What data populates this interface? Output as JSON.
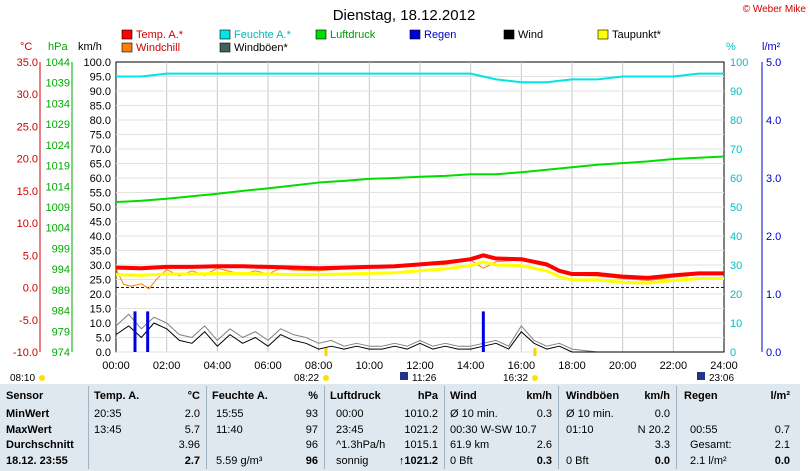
{
  "title": "Dienstag, 18.12.2012",
  "copyright": "© Weber Mike",
  "colors": {
    "temp": "#ff0000",
    "humidity": "#00e5e5",
    "pressure": "#00dd00",
    "rain": "#0000dd",
    "wind": "#000000",
    "dewpoint": "#ffff00",
    "windchill": "#ff8000",
    "gust": "#808080",
    "table_bg": "#dfe8ef"
  },
  "legend": [
    {
      "label": "Temp. A.*",
      "color": "#ff0000"
    },
    {
      "label": "Feuchte A.*",
      "color": "#00e5e5"
    },
    {
      "label": "Luftdruck",
      "color": "#00dd00"
    },
    {
      "label": "Regen",
      "color": "#0000dd"
    },
    {
      "label": "Wind",
      "color": "#000000"
    },
    {
      "label": "Taupunkt*",
      "color": "#ffff00"
    },
    {
      "label": "Windchill",
      "color": "#ff8000"
    },
    {
      "label": "Windböen*",
      "color": "#406060"
    }
  ],
  "axis_units": {
    "temp": "°C",
    "pressure": "hPa",
    "wind": "km/h",
    "humidity": "%",
    "rain": "l/m²"
  },
  "chart_data": {
    "type": "line",
    "title": "Dienstag, 18.12.2012",
    "x_ticks": [
      "00:00",
      "02:00",
      "04:00",
      "06:00",
      "08:00",
      "10:00",
      "12:00",
      "14:00",
      "16:00",
      "18:00",
      "20:00",
      "22:00",
      "24:00"
    ],
    "temp_ticks": [
      "35.0",
      "30.0",
      "25.0",
      "20.0",
      "15.0",
      "10.0",
      "5.0",
      "0.0",
      "-5.0",
      "-10.0"
    ],
    "pressure_ticks": [
      "1044",
      "1039",
      "1034",
      "1029",
      "1024",
      "1019",
      "1014",
      "1009",
      "1004",
      "999",
      "994",
      "989",
      "984",
      "979",
      "974"
    ],
    "wind_ticks": [
      "100.0",
      "95.0",
      "90.0",
      "85.0",
      "80.0",
      "75.0",
      "70.0",
      "65.0",
      "60.0",
      "55.0",
      "50.0",
      "45.0",
      "40.0",
      "35.0",
      "30.0",
      "25.0",
      "20.0",
      "15.0",
      "10.0",
      "5.0",
      "0.0"
    ],
    "humidity_ticks": [
      "100",
      "90",
      "80",
      "70",
      "60",
      "50",
      "40",
      "30",
      "20",
      "10",
      "0"
    ],
    "rain_ticks": [
      "5.0",
      "4.0",
      "3.0",
      "2.0",
      "1.0",
      "0.0"
    ],
    "ylim_temp": [
      -10,
      35
    ],
    "ylim_pressure": [
      974,
      1044
    ],
    "ylim_wind": [
      0,
      100
    ],
    "ylim_humidity": [
      0,
      100
    ],
    "ylim_rain": [
      0,
      5
    ],
    "series": [
      {
        "name": "Temp. A.*",
        "axis": "temp",
        "x": [
          0,
          1,
          2,
          3,
          4,
          5,
          6,
          7,
          8,
          9,
          10,
          11,
          12,
          13,
          14,
          14.5,
          15,
          16,
          17,
          17.5,
          18,
          19,
          20,
          21,
          22,
          23,
          24
        ],
        "values": [
          3.1,
          3.0,
          3.2,
          3.2,
          3.3,
          3.3,
          3.2,
          3.1,
          3.0,
          3.1,
          3.2,
          3.3,
          3.6,
          3.9,
          4.4,
          5.0,
          4.5,
          4.4,
          3.6,
          2.6,
          2.1,
          2.1,
          1.7,
          1.5,
          1.9,
          2.2,
          2.2
        ]
      },
      {
        "name": "Taupunkt*",
        "axis": "temp",
        "x": [
          0,
          1,
          2,
          3,
          4,
          5,
          6,
          7,
          8,
          9,
          10,
          11,
          12,
          13,
          14,
          14.5,
          15,
          16,
          17,
          17.5,
          18,
          19,
          20,
          21,
          22,
          23,
          24
        ],
        "values": [
          2.0,
          1.9,
          2.1,
          2.1,
          2.2,
          2.2,
          2.1,
          2.0,
          2.0,
          2.1,
          2.2,
          2.3,
          2.6,
          2.9,
          3.4,
          4.0,
          3.5,
          3.4,
          2.6,
          1.7,
          1.2,
          1.2,
          0.8,
          0.7,
          1.1,
          1.4,
          1.4
        ]
      },
      {
        "name": "Windchill",
        "axis": "temp",
        "x": [
          0,
          0.3,
          0.6,
          1,
          1.3,
          1.6,
          2,
          2.5,
          3,
          3.5,
          4,
          5,
          5.5,
          6,
          6.5,
          7,
          8,
          9,
          10,
          11,
          12,
          13,
          14,
          14.5,
          15,
          16,
          17,
          18,
          19,
          20,
          21,
          22,
          23,
          24
        ],
        "values": [
          2.9,
          0.5,
          0.2,
          0.6,
          -0.2,
          1.3,
          2.8,
          1.8,
          2.6,
          1.9,
          3.0,
          2.0,
          2.6,
          2.1,
          3.0,
          2.7,
          2.6,
          2.9,
          3.1,
          3.2,
          3.4,
          3.6,
          4.2,
          3.0,
          4.0,
          4.3,
          3.3,
          1.9,
          1.8,
          1.4,
          1.1,
          1.6,
          2.0,
          2.1
        ]
      },
      {
        "name": "Feuchte A.*",
        "axis": "humidity",
        "x": [
          0,
          1,
          2,
          3,
          4,
          5,
          6,
          7,
          8,
          9,
          10,
          11,
          12,
          13,
          14,
          15,
          16,
          17,
          18,
          19,
          20,
          21,
          22,
          23,
          24
        ],
        "values": [
          95,
          95,
          96,
          96,
          96,
          96,
          96,
          96,
          96,
          96,
          96,
          96,
          96,
          96,
          96,
          94,
          93,
          93,
          94,
          94,
          95,
          95,
          95,
          96,
          96
        ]
      },
      {
        "name": "Luftdruck",
        "axis": "pressure",
        "x": [
          0,
          1,
          2,
          3,
          4,
          5,
          6,
          7,
          8,
          9,
          10,
          11,
          12,
          13,
          14,
          15,
          16,
          17,
          18,
          19,
          20,
          21,
          22,
          23,
          24
        ],
        "values": [
          1010.2,
          1010.5,
          1011.0,
          1011.6,
          1012.2,
          1012.9,
          1013.5,
          1014.2,
          1014.9,
          1015.3,
          1015.8,
          1016.0,
          1016.3,
          1016.5,
          1016.9,
          1016.9,
          1017.4,
          1018.0,
          1018.6,
          1019.2,
          1019.6,
          1020.0,
          1020.6,
          1020.9,
          1021.2
        ]
      },
      {
        "name": "Wind",
        "axis": "wind",
        "x": [
          0,
          0.5,
          1,
          1.5,
          2,
          2.5,
          3,
          3.5,
          4,
          4.5,
          5,
          5.5,
          6,
          6.5,
          7,
          7.5,
          8,
          8.5,
          9,
          9.5,
          10,
          10.5,
          11,
          11.5,
          12,
          12.5,
          13,
          13.5,
          14,
          14.5,
          15,
          15.5,
          16,
          16.5,
          17,
          17.5,
          18,
          19,
          20,
          21,
          22,
          23,
          24
        ],
        "values": [
          6,
          9,
          5,
          10,
          8,
          4,
          3,
          7,
          2,
          6,
          3,
          5,
          2,
          6,
          4,
          3,
          1,
          2,
          1,
          2,
          1,
          1,
          2,
          1,
          3,
          1,
          2,
          1,
          1,
          2,
          3,
          1,
          7,
          3,
          1,
          2,
          0,
          0,
          0,
          0,
          0,
          0,
          0
        ]
      },
      {
        "name": "Windböen*",
        "axis": "wind",
        "x": [
          0,
          0.5,
          1,
          1.5,
          2,
          2.5,
          3,
          3.5,
          4,
          4.5,
          5,
          5.5,
          6,
          6.5,
          7,
          7.5,
          8,
          8.5,
          9,
          9.5,
          10,
          10.5,
          11,
          11.5,
          12,
          12.5,
          13,
          13.5,
          14,
          14.5,
          15,
          15.5,
          16,
          16.5,
          17,
          17.5,
          18,
          19,
          20,
          21,
          22,
          23,
          24
        ],
        "values": [
          9,
          13,
          8,
          12,
          10,
          6,
          5,
          9,
          4,
          8,
          5,
          7,
          4,
          8,
          6,
          5,
          3,
          4,
          2,
          3,
          2,
          2,
          3,
          2,
          4,
          2,
          3,
          2,
          2,
          3,
          4,
          2,
          9,
          4,
          2,
          3,
          1,
          0,
          0,
          0,
          0,
          0,
          0
        ]
      }
    ],
    "rain_bars": {
      "x": [
        0.75,
        1.25,
        14.5
      ],
      "values": [
        0.7,
        0.7,
        0.7
      ]
    }
  },
  "sun_markers": {
    "sunrise": "08:22",
    "sunset": "16:32",
    "moonrise": "11:26",
    "moonset": "23:06",
    "day_start": "08:10"
  },
  "table": {
    "headers": [
      "Sensor",
      "Temp. A.",
      "°C",
      "Feuchte A.",
      "%",
      "Luftdruck",
      "hPa",
      "Wind",
      "km/h",
      "Windböen",
      "km/h",
      "Regen",
      "l/m²"
    ],
    "rows": [
      {
        "label": "MinWert",
        "temp_time": "20:35",
        "temp_val": "2.0",
        "hum_time": "15:55",
        "hum_val": "93",
        "pres_time": "00:00",
        "pres_val": "1010.2",
        "wind_desc": "Ø 10 min.",
        "wind_val": "0.3",
        "gust_desc": "Ø 10 min.",
        "gust_val": "0.0",
        "rain_desc": "",
        "rain_val": ""
      },
      {
        "label": "MaxWert",
        "temp_time": "13:45",
        "temp_val": "5.7",
        "hum_time": "11:40",
        "hum_val": "97",
        "pres_time": "23:45",
        "pres_val": "1021.2",
        "wind_desc": "00:30   W-SW 10.7",
        "wind_val": "",
        "gust_desc": "01:10",
        "gust_val": "N 20.2",
        "rain_desc": "00:55",
        "rain_val": "0.7"
      },
      {
        "label": "Durchschnitt",
        "temp_time": "",
        "temp_val": "3.96",
        "hum_time": "",
        "hum_val": "96",
        "pres_time": "^1.3hPa/h",
        "pres_val": "1015.1",
        "wind_desc": "61.9 km",
        "wind_val": "2.6",
        "gust_desc": "",
        "gust_val": "3.3",
        "rain_desc": "Gesamt:",
        "rain_val": "2.1"
      },
      {
        "label": "18.12. 23:55",
        "temp_time": "",
        "temp_val": "2.7",
        "hum_time": "5.59 g/m³",
        "hum_val": "96",
        "pres_time": "sonnig",
        "pres_val": "↑1021.2",
        "wind_desc": "0 Bft",
        "wind_val": "0.3",
        "gust_desc": "0 Bft",
        "gust_val": "0.0",
        "rain_desc": "2.1 l/m²",
        "rain_val": "0.0"
      }
    ]
  }
}
